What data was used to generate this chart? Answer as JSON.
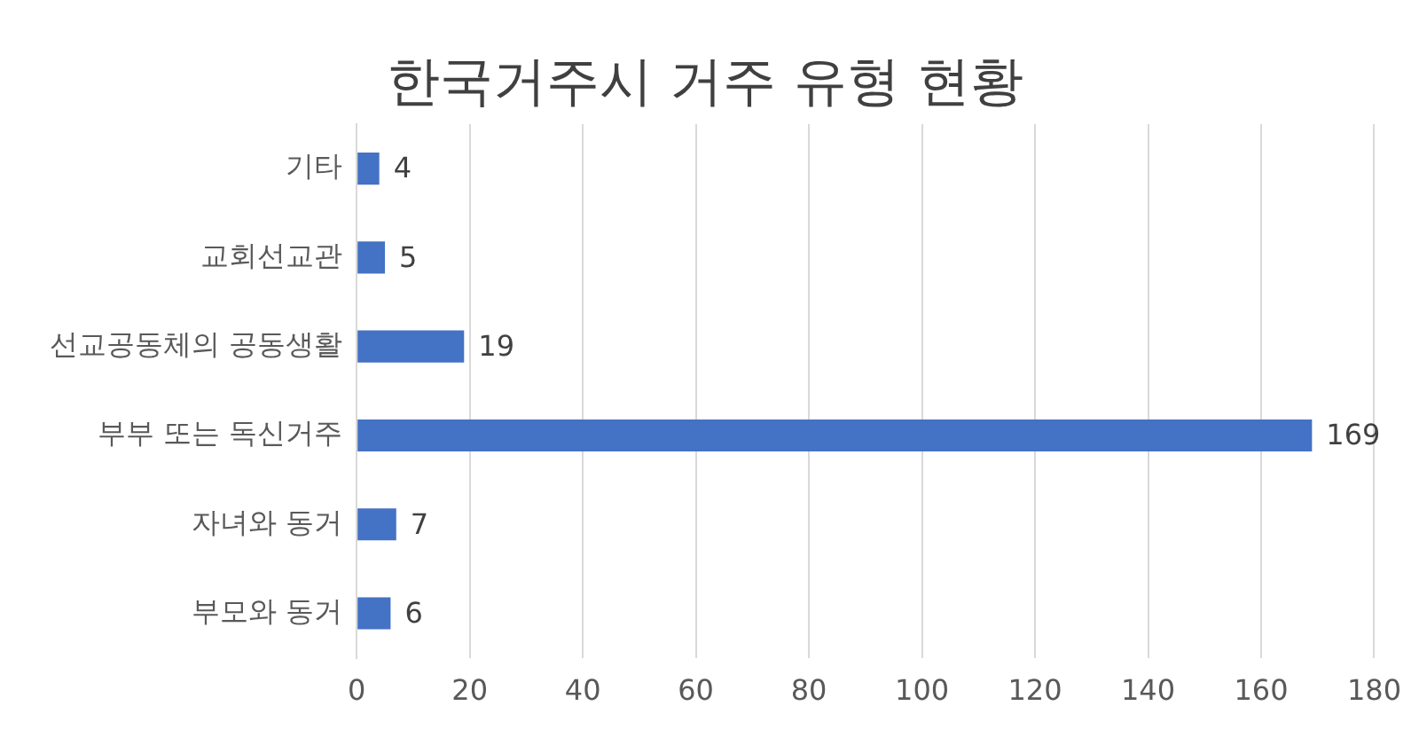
{
  "chart_data": {
    "type": "bar",
    "orientation": "horizontal",
    "title": "한국거주시 거주 유형 현황",
    "categories": [
      "기타",
      "교회선교관",
      "선교공동체의 공동생활",
      "부부 또는 독신거주",
      "자녀와 동거",
      "부모와 동거"
    ],
    "values": [
      4,
      5,
      19,
      169,
      7,
      6
    ],
    "color": "#4472c4",
    "xlim": [
      0,
      180
    ],
    "xticks": [
      0,
      20,
      40,
      60,
      80,
      100,
      120,
      140,
      160,
      180
    ],
    "grid": "x",
    "data_labels": true
  }
}
